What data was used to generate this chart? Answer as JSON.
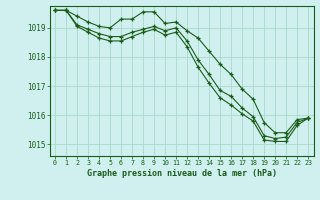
{
  "background_color": "#cff0ee",
  "plot_bg_color": "#cff0ee",
  "grid_color": "#aad8cc",
  "line_color": "#1a5c1a",
  "marker_color": "#1a5c1a",
  "xlabel": "Graphe pression niveau de la mer (hPa)",
  "xlabel_color": "#1a5c1a",
  "tick_color": "#1a5c1a",
  "ylim": [
    1014.6,
    1019.75
  ],
  "xlim": [
    -0.5,
    23.5
  ],
  "yticks": [
    1015,
    1016,
    1017,
    1018,
    1019
  ],
  "xticks": [
    0,
    1,
    2,
    3,
    4,
    5,
    6,
    7,
    8,
    9,
    10,
    11,
    12,
    13,
    14,
    15,
    16,
    17,
    18,
    19,
    20,
    21,
    22,
    23
  ],
  "series": [
    {
      "x": [
        0,
        1,
        2,
        3,
        4,
        5,
        6,
        7,
        8,
        9,
        10,
        11,
        12,
        13,
        14,
        15,
        16,
        17,
        18,
        19,
        20,
        21,
        22,
        23
      ],
      "y": [
        1019.6,
        1019.6,
        1019.4,
        1019.2,
        1019.05,
        1019.0,
        1019.3,
        1019.3,
        1019.55,
        1019.55,
        1019.15,
        1019.2,
        1018.9,
        1018.65,
        1018.2,
        1017.75,
        1017.4,
        1016.9,
        1016.55,
        1015.75,
        1015.4,
        1015.4,
        1015.85,
        1015.9
      ]
    },
    {
      "x": [
        0,
        1,
        2,
        3,
        4,
        5,
        6,
        7,
        8,
        9,
        10,
        11,
        12,
        13,
        14,
        15,
        16,
        17,
        18,
        19,
        20,
        21,
        22,
        23
      ],
      "y": [
        1019.6,
        1019.6,
        1019.1,
        1018.95,
        1018.8,
        1018.7,
        1018.7,
        1018.85,
        1018.95,
        1019.05,
        1018.9,
        1019.0,
        1018.55,
        1017.9,
        1017.4,
        1016.85,
        1016.65,
        1016.25,
        1015.95,
        1015.3,
        1015.2,
        1015.25,
        1015.75,
        1015.9
      ]
    },
    {
      "x": [
        0,
        1,
        2,
        3,
        4,
        5,
        6,
        7,
        8,
        9,
        10,
        11,
        12,
        13,
        14,
        15,
        16,
        17,
        18,
        19,
        20,
        21,
        22,
        23
      ],
      "y": [
        1019.6,
        1019.6,
        1019.05,
        1018.85,
        1018.65,
        1018.55,
        1018.55,
        1018.7,
        1018.85,
        1018.95,
        1018.75,
        1018.85,
        1018.35,
        1017.65,
        1017.1,
        1016.6,
        1016.35,
        1016.05,
        1015.8,
        1015.15,
        1015.1,
        1015.1,
        1015.65,
        1015.9
      ]
    }
  ]
}
